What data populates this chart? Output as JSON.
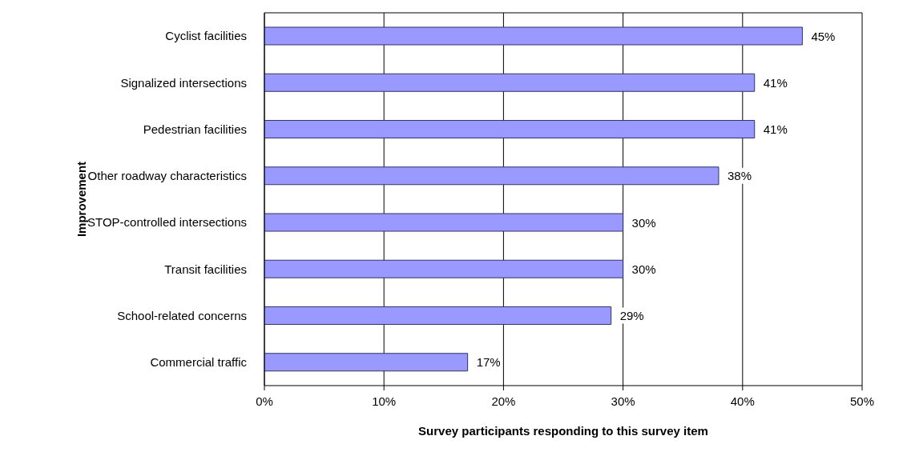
{
  "chart_data": {
    "type": "bar",
    "orientation": "horizontal",
    "xlabel": "Survey participants responding to this survey item",
    "ylabel": "Improvement",
    "categories": [
      "Cyclist facilities",
      "Signalized intersections",
      "Pedestrian facilities",
      "Other roadway characteristics",
      "STOP-controlled intersections",
      "Transit facilities",
      "School-related concerns",
      "Commercial traffic"
    ],
    "values": [
      45,
      41,
      41,
      38,
      30,
      30,
      29,
      17
    ],
    "value_labels": [
      "45%",
      "41%",
      "41%",
      "38%",
      "30%",
      "30%",
      "29%",
      "17%"
    ],
    "color": "#9999ff",
    "xlim": [
      0,
      50
    ],
    "xticks": [
      {
        "value": 0,
        "label": "0%"
      },
      {
        "value": 10,
        "label": "10%"
      },
      {
        "value": 20,
        "label": "20%"
      },
      {
        "value": 30,
        "label": "30%"
      },
      {
        "value": 40,
        "label": "40%"
      },
      {
        "value": 50,
        "label": "50%"
      }
    ],
    "grid": "x",
    "legend": false
  }
}
